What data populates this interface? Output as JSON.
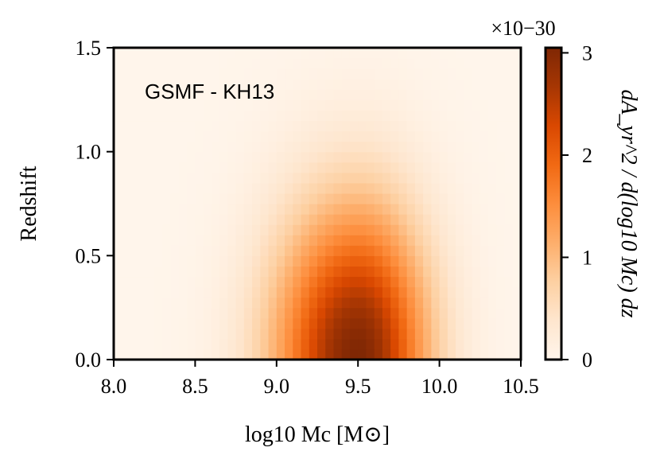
{
  "chart_data": {
    "type": "heatmap",
    "title": "",
    "annotation": "GSMF - KH13",
    "xlabel": "log10 Mc [M⊙]",
    "ylabel": "Redshift",
    "xlim": [
      8.0,
      10.5
    ],
    "ylim": [
      0.0,
      1.5
    ],
    "xticks": [
      "8.0",
      "8.5",
      "9.0",
      "9.5",
      "10.0",
      "10.5"
    ],
    "yticks": [
      "0.0",
      "0.5",
      "1.0",
      "1.5"
    ],
    "colorbar": {
      "label": "dA_yr^2 / d(log10 Mc) dz",
      "range": [
        0,
        3.05
      ],
      "ticks": [
        "0",
        "1",
        "2",
        "3"
      ],
      "scale_factor": "×10−30",
      "colormap": "Oranges",
      "colors": [
        "#fff5eb",
        "#fee6ce",
        "#fdd0a2",
        "#fdae6b",
        "#fd8d3c",
        "#f16913",
        "#d94801",
        "#a63603",
        "#7f2704"
      ]
    },
    "peak": {
      "x": 9.5,
      "y": 0.0,
      "value": 3.05
    },
    "spread": {
      "x_low": 0.36,
      "x_high": 0.3,
      "y": 0.52
    }
  }
}
